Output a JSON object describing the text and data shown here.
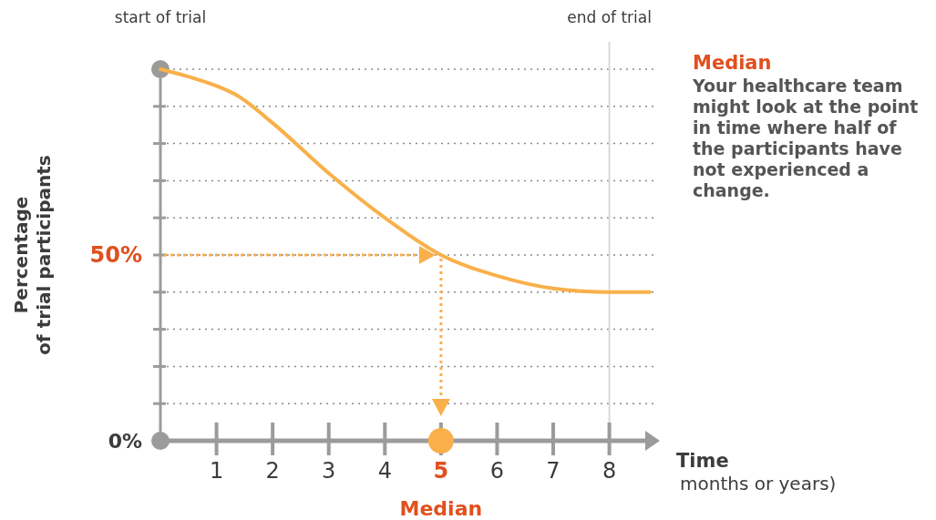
{
  "chart_data": {
    "type": "line",
    "xlabel": "Time",
    "ylabel": "Percentage\nof trial participants",
    "x": [
      0,
      0.5,
      1,
      1.36,
      2,
      3,
      4,
      5,
      6,
      7,
      8,
      8.72
    ],
    "series": [
      {
        "color": "#f9b04a",
        "marker": "none",
        "values": [
          100,
          98,
          95.5,
          93,
          85.5,
          72,
          60,
          50,
          44.4,
          41,
          40,
          40
        ]
      },
      {
        "type": "scatter",
        "x": [
          0
        ],
        "color": "#9b9b9b",
        "marker": "circle",
        "values": [
          0
        ]
      }
    ],
    "xlim": [
      0,
      8.9
    ],
    "ylim": [
      0,
      100
    ],
    "xticks": [
      1,
      2,
      3,
      4,
      5,
      6,
      7,
      8
    ],
    "yticks": [
      {
        "value": 0,
        "label": "0%"
      },
      {
        "value": 10,
        "label": null
      },
      {
        "value": 20,
        "label": null
      },
      {
        "value": 30,
        "label": null
      },
      {
        "value": 40,
        "label": null
      },
      {
        "value": 50,
        "label": "50%"
      },
      {
        "value": 60,
        "label": null
      },
      {
        "value": 70,
        "label": null
      },
      {
        "value": 80,
        "label": null
      },
      {
        "value": 90,
        "label": null
      },
      {
        "value": 100,
        "label": null
      }
    ],
    "grid": "y",
    "line_style": "solid",
    "ref_lines": [
      {
        "axis": "x",
        "value": 8,
        "label": "end of trial",
        "color": "#d9d9d9"
      }
    ],
    "annotations": [
      {
        "text": "Median",
        "x": 5,
        "y": 0
      },
      "start of trial",
      "months or years)",
      "Median",
      "Your healthcare team\nmight look at the point\nin time where half of\nthe participants have\nnot experienced a\nchange."
    ]
  }
}
